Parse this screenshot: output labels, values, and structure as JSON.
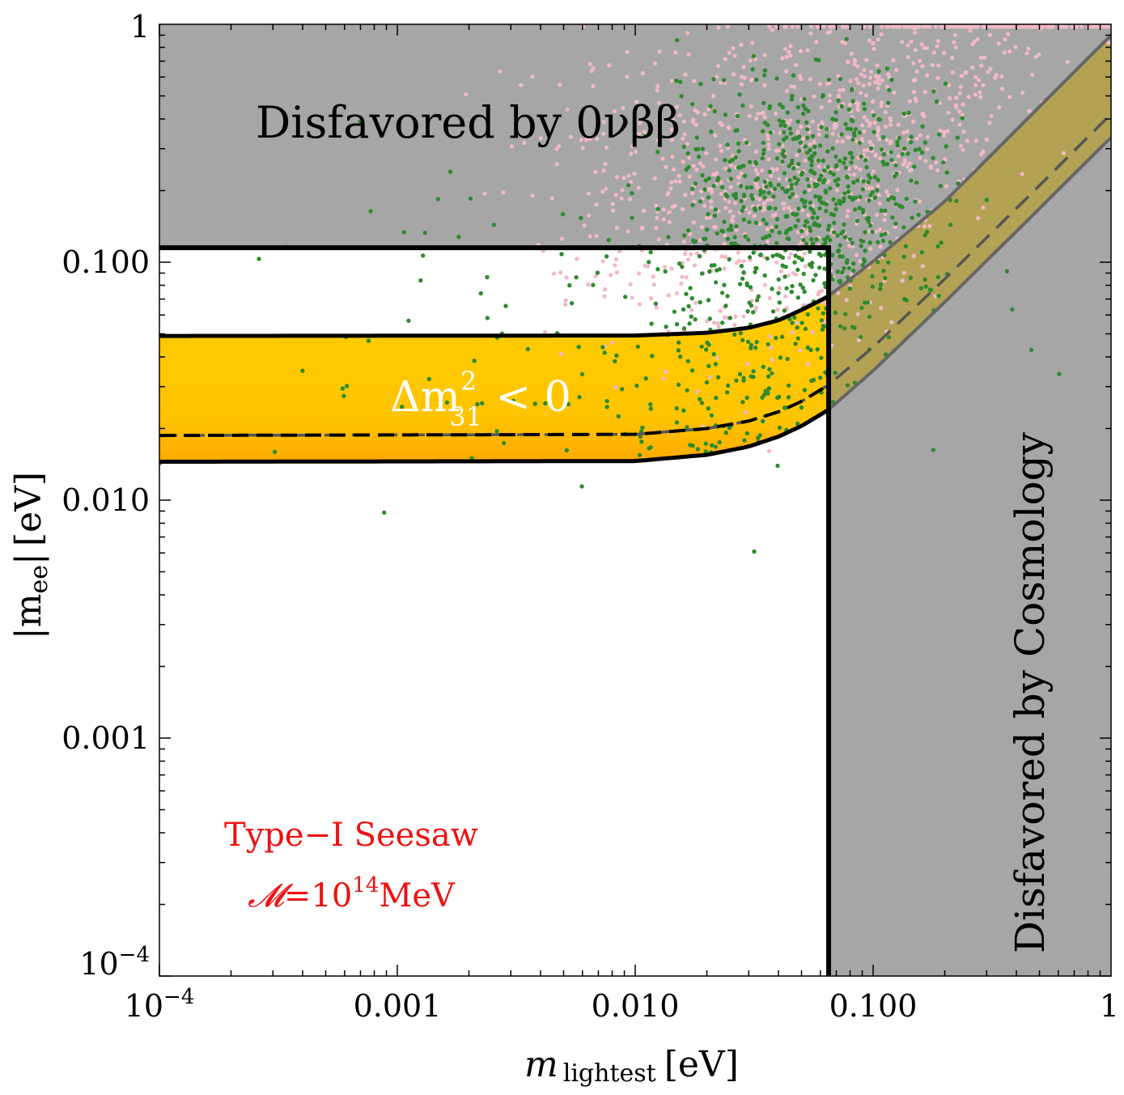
{
  "chart_data": {
    "type": "scatter",
    "title": "",
    "xlabel": {
      "main": "m",
      "sub": "lightest",
      "unit": "[eV]"
    },
    "ylabel": {
      "main": "|m",
      "sub": "ee",
      "close": "|",
      "unit": "[eV]"
    },
    "x_scale": "log",
    "y_scale": "log",
    "xlim": [
      0.0001,
      1
    ],
    "ylim": [
      0.0001,
      1
    ],
    "x_ticks": [
      {
        "value": 0.0001,
        "base": "10",
        "exp": "−4"
      },
      {
        "value": 0.001,
        "label": "0.001"
      },
      {
        "value": 0.01,
        "label": "0.010"
      },
      {
        "value": 0.1,
        "label": "0.100"
      },
      {
        "value": 1,
        "label": "1"
      }
    ],
    "y_ticks": [
      {
        "value": 0.0001,
        "base": "10",
        "exp": "−4"
      },
      {
        "value": 0.001,
        "label": "0.001"
      },
      {
        "value": 0.01,
        "label": "0.010"
      },
      {
        "value": 0.1,
        "label": "0.100"
      },
      {
        "value": 1,
        "label": "1"
      }
    ],
    "excluded_regions": {
      "neutrinoless_double_beta_limit_y": 0.115,
      "cosmology_limit_x": 0.065,
      "color": "#a6a6a6"
    },
    "inverted_ordering_band": {
      "upper": [
        [
          0.0001,
          0.049
        ],
        [
          0.01,
          0.0492
        ],
        [
          0.02,
          0.0505
        ],
        [
          0.03,
          0.053
        ],
        [
          0.04,
          0.057
        ],
        [
          0.05,
          0.063
        ],
        [
          0.065,
          0.072
        ],
        [
          0.1,
          0.101
        ],
        [
          0.2,
          0.18
        ],
        [
          0.5,
          0.45
        ],
        [
          1,
          0.9
        ]
      ],
      "dashed": [
        [
          0.0001,
          0.0187
        ],
        [
          0.01,
          0.0189
        ],
        [
          0.02,
          0.02
        ],
        [
          0.03,
          0.0215
        ],
        [
          0.04,
          0.0235
        ],
        [
          0.05,
          0.026
        ],
        [
          0.065,
          0.0305
        ],
        [
          0.1,
          0.044
        ],
        [
          0.2,
          0.085
        ],
        [
          0.5,
          0.21
        ],
        [
          1,
          0.42
        ]
      ],
      "lower": [
        [
          0.0001,
          0.0145
        ],
        [
          0.01,
          0.0146
        ],
        [
          0.02,
          0.0155
        ],
        [
          0.03,
          0.0168
        ],
        [
          0.04,
          0.0185
        ],
        [
          0.05,
          0.0205
        ],
        [
          0.065,
          0.024
        ],
        [
          0.1,
          0.035
        ],
        [
          0.2,
          0.068
        ],
        [
          0.5,
          0.168
        ],
        [
          1,
          0.335
        ]
      ],
      "colors": {
        "top": "#ffcc00",
        "bottom": "#ffab00",
        "excluded_tint": "#b3a254"
      }
    },
    "scatter_series": [
      {
        "name": "green points",
        "color": "#2e8b2e",
        "count": 1800
      },
      {
        "name": "pink points",
        "color": "#f2b8c6",
        "count": 1100
      }
    ],
    "annotations": [
      {
        "name": "0vbb",
        "text": "Disfavored by 0νββ",
        "color": "#000000"
      },
      {
        "name": "cosmology",
        "text": "Disfavored by Cosmology",
        "color": "#000000"
      },
      {
        "name": "band",
        "base": "Δm",
        "sup": "2",
        "sub": "31",
        "rel": " < 0",
        "color": "#ffffff"
      },
      {
        "name": "model",
        "line1": "Type−I Seesaw",
        "script": "𝓜",
        "eq": "=10",
        "exp": "14",
        "unit": "MeV",
        "color": "#ee1111"
      }
    ]
  }
}
